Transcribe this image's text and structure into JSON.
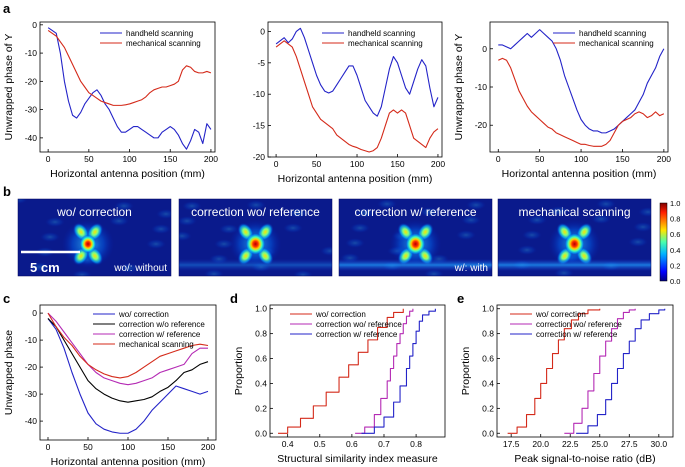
{
  "panels": {
    "a": "a",
    "b": "b",
    "c": "c",
    "d": "d",
    "e": "e"
  },
  "colors": {
    "blue": "#2323c8",
    "red": "#d42a1a",
    "magenta": "#b42ab4",
    "black": "#000000",
    "image_bg": "#0a1a8c"
  },
  "chart_data": [
    {
      "id": "a1",
      "type": "line",
      "xlabel": "Horizontal antenna position (mm)",
      "ylabel": "Unwrapped phase of Y",
      "xlim": [
        -10,
        205
      ],
      "ylim": [
        -45,
        1
      ],
      "xticks": [
        0,
        50,
        100,
        150,
        200
      ],
      "yticks": [
        0,
        -10,
        -20,
        -30,
        -40
      ],
      "legend": "top-right",
      "series": [
        {
          "name": "handheld scanning",
          "color": "blue",
          "x": [
            0,
            5,
            10,
            15,
            20,
            25,
            30,
            35,
            40,
            45,
            50,
            55,
            60,
            65,
            70,
            75,
            80,
            85,
            90,
            95,
            100,
            105,
            110,
            115,
            120,
            125,
            130,
            135,
            140,
            145,
            150,
            155,
            160,
            165,
            170,
            175,
            180,
            185,
            190,
            195,
            200
          ],
          "y": [
            -1,
            -2,
            -3,
            -10,
            -20,
            -27,
            -32,
            -33,
            -31,
            -28,
            -26,
            -24,
            -23,
            -25,
            -28,
            -30,
            -33,
            -36,
            -38,
            -38,
            -37,
            -36,
            -36,
            -37,
            -38,
            -39,
            -40,
            -40,
            -38,
            -37,
            -36,
            -37,
            -39,
            -42,
            -44,
            -41,
            -37,
            -38,
            -42,
            -35,
            -37
          ]
        },
        {
          "name": "mechanical scanning",
          "color": "red",
          "x": [
            0,
            5,
            10,
            15,
            20,
            25,
            30,
            35,
            40,
            45,
            50,
            55,
            60,
            65,
            70,
            75,
            80,
            85,
            90,
            95,
            100,
            105,
            110,
            115,
            120,
            125,
            130,
            135,
            140,
            145,
            150,
            155,
            160,
            165,
            170,
            175,
            180,
            185,
            190,
            195,
            200
          ],
          "y": [
            -2,
            -3,
            -4,
            -6,
            -8,
            -11,
            -14,
            -17,
            -20,
            -22,
            -24,
            -25,
            -26,
            -27,
            -27.5,
            -28,
            -28.5,
            -28.5,
            -28.5,
            -28.3,
            -28,
            -27.5,
            -27,
            -26.5,
            -25.5,
            -24,
            -23,
            -22.5,
            -22,
            -22,
            -21.5,
            -21,
            -20,
            -16,
            -14.5,
            -15,
            -16.5,
            -17,
            -17,
            -16.5,
            -17
          ]
        }
      ]
    },
    {
      "id": "a2",
      "type": "line",
      "xlabel": "Horizontal antenna position (mm)",
      "ylabel": "",
      "xlim": [
        -10,
        205
      ],
      "ylim": [
        -20,
        1.5
      ],
      "xticks": [
        0,
        50,
        100,
        150,
        200
      ],
      "yticks": [
        0,
        -5,
        -10,
        -15,
        -20
      ],
      "legend": "top-right",
      "series": [
        {
          "name": "handheld scanning",
          "color": "blue",
          "x": [
            0,
            5,
            10,
            15,
            20,
            25,
            30,
            35,
            40,
            45,
            50,
            55,
            60,
            65,
            70,
            75,
            80,
            85,
            90,
            95,
            100,
            105,
            110,
            115,
            120,
            125,
            130,
            135,
            140,
            145,
            150,
            155,
            160,
            165,
            170,
            175,
            180,
            185,
            190,
            195,
            200
          ],
          "y": [
            -2,
            -1.5,
            -1,
            -1.8,
            -1.2,
            0,
            0.5,
            -1,
            -3,
            -5,
            -7,
            -8.5,
            -9.5,
            -9.8,
            -9.5,
            -8.5,
            -7.5,
            -6.5,
            -5.5,
            -5.5,
            -7,
            -9,
            -11,
            -12,
            -13,
            -13.5,
            -12,
            -9,
            -6,
            -4,
            -5,
            -7,
            -9,
            -10,
            -8,
            -6,
            -4.5,
            -5.5,
            -9,
            -12,
            -10.5
          ]
        },
        {
          "name": "mechanical scanning",
          "color": "red",
          "x": [
            0,
            5,
            10,
            15,
            20,
            25,
            30,
            35,
            40,
            45,
            50,
            55,
            60,
            65,
            70,
            75,
            80,
            85,
            90,
            95,
            100,
            105,
            110,
            115,
            120,
            125,
            130,
            135,
            140,
            145,
            150,
            155,
            160,
            165,
            170,
            175,
            180,
            185,
            190,
            195,
            200
          ],
          "y": [
            -2.5,
            -2,
            -1.5,
            -2,
            -2.5,
            -4,
            -6,
            -8,
            -10,
            -12,
            -13,
            -14,
            -14.5,
            -15,
            -15.5,
            -16.5,
            -17,
            -17.5,
            -18,
            -18.3,
            -18.5,
            -18.8,
            -19,
            -19.2,
            -19,
            -18.5,
            -17,
            -15,
            -13,
            -12.5,
            -13,
            -12.5,
            -13,
            -15,
            -17,
            -17.5,
            -18,
            -18.5,
            -17,
            -16,
            -15.5
          ]
        }
      ]
    },
    {
      "id": "a3",
      "type": "line",
      "xlabel": "Horizontal antenna position (mm)",
      "ylabel": "Unwrapped phase of Y",
      "xlim": [
        -10,
        205
      ],
      "ylim": [
        -27,
        7
      ],
      "xticks": [
        0,
        50,
        100,
        150,
        200
      ],
      "yticks": [
        0,
        -10,
        -20
      ],
      "legend": "top-right",
      "series": [
        {
          "name": "handheld scanning",
          "color": "blue",
          "x": [
            0,
            5,
            10,
            15,
            20,
            25,
            30,
            35,
            40,
            45,
            50,
            55,
            60,
            65,
            70,
            75,
            80,
            85,
            90,
            95,
            100,
            105,
            110,
            115,
            120,
            125,
            130,
            135,
            140,
            145,
            150,
            155,
            160,
            165,
            170,
            175,
            180,
            185,
            190,
            195,
            200
          ],
          "y": [
            1,
            1,
            0.5,
            0,
            1,
            2,
            3,
            4,
            3,
            4,
            5,
            4,
            3,
            2,
            0,
            -3,
            -7,
            -10,
            -13,
            -16,
            -18.5,
            -20,
            -21,
            -21.5,
            -21.5,
            -22,
            -22,
            -21.5,
            -21,
            -20,
            -19,
            -18,
            -17,
            -16,
            -14,
            -12,
            -9,
            -7,
            -5,
            -2,
            0
          ]
        },
        {
          "name": "mechanical scanning",
          "color": "red",
          "x": [
            0,
            5,
            10,
            15,
            20,
            25,
            30,
            35,
            40,
            45,
            50,
            55,
            60,
            65,
            70,
            75,
            80,
            85,
            90,
            95,
            100,
            105,
            110,
            115,
            120,
            125,
            130,
            135,
            140,
            145,
            150,
            155,
            160,
            165,
            170,
            175,
            180,
            185,
            190,
            195,
            200
          ],
          "y": [
            -3,
            -2.5,
            -3,
            -5,
            -8,
            -11,
            -13,
            -15,
            -16.5,
            -17.5,
            -18.5,
            -19.5,
            -20.5,
            -21,
            -22,
            -22.5,
            -23,
            -23.5,
            -24,
            -24.5,
            -25,
            -25,
            -25.3,
            -25.5,
            -25.5,
            -25.5,
            -25,
            -24,
            -22,
            -20,
            -19,
            -18.5,
            -18,
            -17,
            -16.5,
            -17,
            -18,
            -17.5,
            -16.5,
            -17.5,
            -17
          ]
        }
      ]
    },
    {
      "id": "c",
      "type": "line",
      "xlabel": "Horizontal antenna position (mm)",
      "ylabel": "Unwrapped phase",
      "xlim": [
        -10,
        210
      ],
      "ylim": [
        -47,
        3
      ],
      "xticks": [
        0,
        50,
        100,
        150,
        200
      ],
      "yticks": [
        0,
        -10,
        -20,
        -30,
        -40
      ],
      "legend": "top-right",
      "series": [
        {
          "name": "wo/ correction",
          "color": "blue",
          "x": [
            0,
            10,
            20,
            30,
            40,
            50,
            60,
            70,
            80,
            90,
            100,
            110,
            120,
            130,
            140,
            150,
            160,
            170,
            180,
            190,
            200
          ],
          "y": [
            -2,
            -6,
            -13,
            -22,
            -30,
            -37,
            -41,
            -43,
            -44,
            -44.5,
            -44.5,
            -43,
            -40,
            -36,
            -33,
            -30,
            -27,
            -28,
            -29,
            -30,
            -29
          ]
        },
        {
          "name": "correction w/o reference",
          "color": "black",
          "x": [
            0,
            10,
            20,
            30,
            40,
            50,
            60,
            70,
            80,
            90,
            100,
            110,
            120,
            130,
            140,
            150,
            160,
            170,
            180,
            190,
            200
          ],
          "y": [
            -2,
            -5,
            -10,
            -15,
            -20,
            -25,
            -28,
            -30,
            -31.5,
            -32.5,
            -33,
            -32.5,
            -32,
            -31,
            -29,
            -27.5,
            -25,
            -22,
            -21,
            -19,
            -18
          ]
        },
        {
          "name": "correction w/ reference",
          "color": "magenta",
          "x": [
            0,
            10,
            20,
            30,
            40,
            50,
            60,
            70,
            80,
            90,
            100,
            110,
            120,
            130,
            140,
            150,
            160,
            170,
            180,
            190,
            200
          ],
          "y": [
            0,
            -3,
            -7,
            -11,
            -15,
            -19,
            -22,
            -24,
            -25,
            -26,
            -26.5,
            -26,
            -25,
            -24,
            -22,
            -21,
            -20,
            -19,
            -15,
            -13,
            -13
          ]
        },
        {
          "name": "mechanical scanning",
          "color": "red",
          "x": [
            0,
            10,
            20,
            30,
            40,
            50,
            60,
            70,
            80,
            90,
            100,
            110,
            120,
            130,
            140,
            150,
            160,
            170,
            180,
            190,
            200
          ],
          "y": [
            0,
            -5,
            -9,
            -12,
            -16,
            -19,
            -21,
            -22.5,
            -23.5,
            -24,
            -23.5,
            -22,
            -20,
            -18,
            -16,
            -15,
            -14,
            -13,
            -12,
            -11.5,
            -12
          ]
        }
      ]
    },
    {
      "id": "d",
      "type": "line",
      "xlabel": "Structural similarity index measure",
      "ylabel": "Proportion",
      "xlim": [
        0.345,
        0.89
      ],
      "ylim": [
        -0.03,
        1.03
      ],
      "xticks": [
        0.4,
        0.5,
        0.6,
        0.7,
        0.8
      ],
      "yticks": [
        0.0,
        0.2,
        0.4,
        0.6,
        0.8,
        1.0
      ],
      "legend": "top-left",
      "series": [
        {
          "name": "wo/ correction",
          "color": "red",
          "x": [
            0.37,
            0.4,
            0.44,
            0.48,
            0.52,
            0.56,
            0.59,
            0.62,
            0.65,
            0.68,
            0.71,
            0.73,
            0.76
          ],
          "y": [
            0.0,
            0.05,
            0.12,
            0.22,
            0.33,
            0.45,
            0.55,
            0.65,
            0.75,
            0.85,
            0.93,
            0.97,
            1.0
          ]
        },
        {
          "name": "correction wo/ reference",
          "color": "magenta",
          "x": [
            0.61,
            0.64,
            0.67,
            0.69,
            0.71,
            0.72,
            0.73,
            0.74,
            0.75,
            0.76,
            0.77,
            0.78,
            0.79
          ],
          "y": [
            0.0,
            0.05,
            0.15,
            0.28,
            0.42,
            0.52,
            0.62,
            0.72,
            0.8,
            0.88,
            0.94,
            0.98,
            1.0
          ]
        },
        {
          "name": "correction w/ reference",
          "color": "blue",
          "x": [
            0.63,
            0.67,
            0.7,
            0.73,
            0.75,
            0.77,
            0.78,
            0.79,
            0.8,
            0.81,
            0.82,
            0.84,
            0.86
          ],
          "y": [
            0.0,
            0.05,
            0.13,
            0.25,
            0.38,
            0.52,
            0.62,
            0.72,
            0.82,
            0.9,
            0.95,
            0.98,
            1.0
          ]
        }
      ]
    },
    {
      "id": "e",
      "type": "line",
      "xlabel": "Peak signal-to-noise ratio (dB)",
      "ylabel": "Proportion",
      "xlim": [
        16.3,
        31.2
      ],
      "ylim": [
        -0.03,
        1.03
      ],
      "xticks": [
        17.5,
        20.0,
        22.5,
        25.0,
        27.5,
        30.0
      ],
      "yticks": [
        0.0,
        0.2,
        0.4,
        0.6,
        0.8,
        1.0
      ],
      "legend": "top-left",
      "series": [
        {
          "name": "wo/ correction",
          "color": "red",
          "x": [
            17.2,
            18.0,
            18.8,
            19.5,
            20.0,
            20.5,
            21.0,
            21.5,
            22.0,
            22.6,
            23.2,
            24.0,
            25.0
          ],
          "y": [
            0.0,
            0.05,
            0.15,
            0.28,
            0.4,
            0.52,
            0.64,
            0.75,
            0.84,
            0.91,
            0.96,
            0.99,
            1.0
          ]
        },
        {
          "name": "correction wo/ reference",
          "color": "magenta",
          "x": [
            22.0,
            22.8,
            23.5,
            24.0,
            24.5,
            25.0,
            25.5,
            26.0,
            26.5,
            27.0,
            27.5,
            28.0
          ],
          "y": [
            0.0,
            0.08,
            0.2,
            0.34,
            0.48,
            0.62,
            0.74,
            0.84,
            0.92,
            0.97,
            0.99,
            1.0
          ]
        },
        {
          "name": "correction w/ reference",
          "color": "blue",
          "x": [
            23.0,
            24.0,
            24.8,
            25.5,
            26.0,
            26.5,
            27.0,
            27.5,
            28.0,
            28.5,
            29.2,
            30.0,
            30.5
          ],
          "y": [
            0.0,
            0.06,
            0.15,
            0.27,
            0.4,
            0.52,
            0.64,
            0.74,
            0.84,
            0.91,
            0.96,
            0.99,
            1.0
          ]
        }
      ]
    }
  ],
  "images": [
    {
      "label": "wo/ correction",
      "note": "wo/: without",
      "scale": "5 cm",
      "gain": 0.85
    },
    {
      "label": "correction wo/ reference",
      "note": "",
      "gain": 1.0
    },
    {
      "label": "correction w/ reference",
      "note": "w/: with",
      "gain": 1.0
    },
    {
      "label": "mechanical scanning",
      "note": "",
      "gain": 1.0
    }
  ],
  "colorbar": {
    "ticks": [
      "1.0",
      "0.8",
      "0.6",
      "0.4",
      "0.2",
      "0.0"
    ]
  }
}
